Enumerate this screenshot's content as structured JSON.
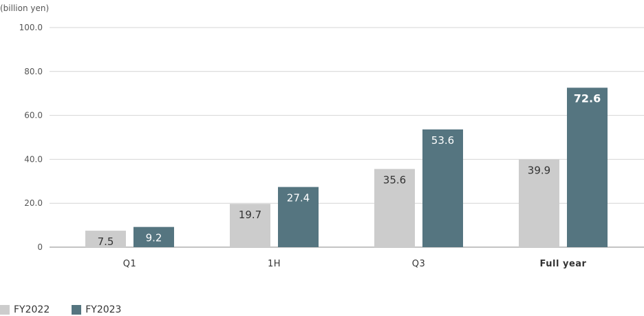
{
  "chart_data": {
    "type": "bar",
    "unit_label": "(billion yen)",
    "categories": [
      "Q1",
      "1H",
      "Q3",
      "Full year"
    ],
    "highlight_category": "Full year",
    "series": [
      {
        "name": "FY2022",
        "values": [
          7.5,
          19.7,
          35.6,
          39.9
        ],
        "color": "#cccccc",
        "labels": [
          "7.5",
          "19.7",
          "35.6",
          "39.9"
        ]
      },
      {
        "name": "FY2023",
        "values": [
          9.2,
          27.4,
          53.6,
          72.6
        ],
        "color": "#557580",
        "labels": [
          "9.2",
          "27.4",
          "53.6",
          "72.6"
        ]
      }
    ],
    "ylim": [
      0,
      100
    ],
    "yticks": [
      0,
      20,
      40,
      60,
      80,
      100
    ],
    "ytick_labels": [
      "0",
      "20.0",
      "40.0",
      "60.0",
      "80.0",
      "100.0"
    ],
    "grid": true,
    "legend_position": "bottom-left",
    "highlight_color": "#557580"
  }
}
